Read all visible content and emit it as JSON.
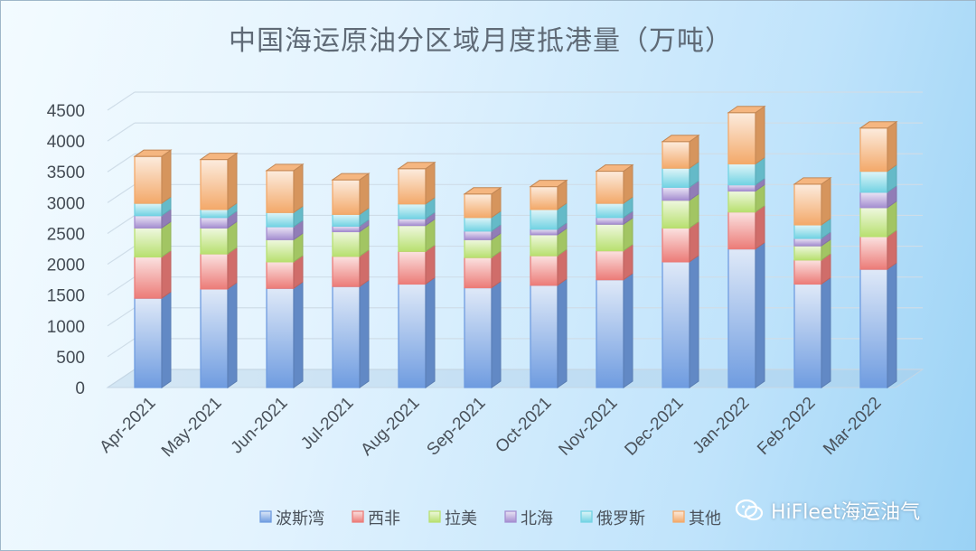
{
  "chart_data": {
    "type": "bar",
    "stacked": true,
    "three_d": true,
    "title": "中国海运原油分区域月度抵港量（万吨）",
    "categories": [
      "Apr-2021",
      "May-2021",
      "Jun-2021",
      "Jul-2021",
      "Aug-2021",
      "Sep-2021",
      "Oct-2021",
      "Nov-2021",
      "Dec-2021",
      "Jan-2022",
      "Feb-2022",
      "Mar-2022"
    ],
    "ylim": [
      0,
      4500
    ],
    "yticks": [
      0,
      500,
      1000,
      1500,
      2000,
      2500,
      3000,
      3500,
      4000,
      4500
    ],
    "grid": true,
    "legend_position": "bottom",
    "series": [
      {
        "name": "波斯湾",
        "color": "#6f9ce0",
        "values": [
          1450,
          1600,
          1610,
          1640,
          1680,
          1620,
          1660,
          1750,
          2040,
          2250,
          1680,
          1920
        ]
      },
      {
        "name": "西非",
        "color": "#ec7c78",
        "values": [
          670,
          570,
          430,
          490,
          530,
          490,
          480,
          470,
          550,
          600,
          390,
          530
        ]
      },
      {
        "name": "拉美",
        "color": "#b8e070",
        "values": [
          470,
          420,
          360,
          400,
          420,
          290,
          340,
          430,
          450,
          340,
          230,
          470
        ]
      },
      {
        "name": "北海",
        "color": "#a58ed0",
        "values": [
          200,
          170,
          210,
          90,
          110,
          140,
          90,
          110,
          210,
          100,
          120,
          250
        ]
      },
      {
        "name": "俄罗斯",
        "color": "#73d3e3",
        "values": [
          200,
          130,
          230,
          190,
          240,
          220,
          320,
          230,
          310,
          340,
          220,
          340
        ]
      },
      {
        "name": "其他",
        "color": "#f3a96a",
        "values": [
          760,
          810,
          680,
          560,
          570,
          380,
          370,
          520,
          430,
          830,
          660,
          700
        ]
      }
    ]
  },
  "watermark": {
    "text": "HiFleet海运油气",
    "icon": "wechat-icon"
  }
}
